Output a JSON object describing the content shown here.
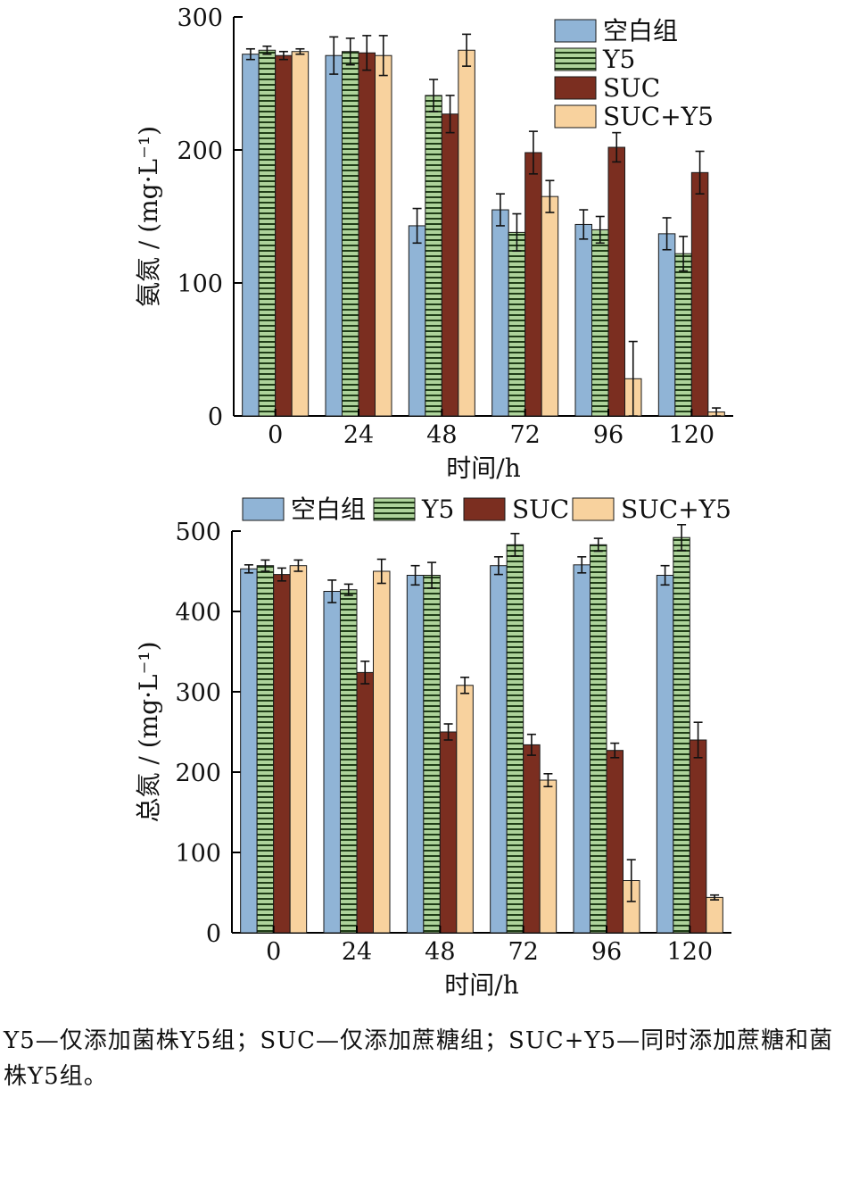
{
  "colors": {
    "blank": "#90b4d6",
    "y5": "#aed39b",
    "suc": "#7b2e20",
    "sucy5": "#f8d29e",
    "axis": "#000000"
  },
  "chart_data": [
    {
      "type": "bar",
      "categories": [
        "0",
        "24",
        "48",
        "72",
        "96",
        "120"
      ],
      "xlabel": "时间/h",
      "ylabel": "氨氮 / (mg·L⁻¹)",
      "ylim": [
        0,
        300
      ],
      "yticks": [
        "0",
        "100",
        "200",
        "300"
      ],
      "legend_position": "top-right",
      "series": [
        {
          "name": "空白组",
          "key": "blank",
          "values": [
            272,
            271,
            143,
            155,
            144,
            137
          ],
          "errors": [
            4,
            14,
            13,
            12,
            11,
            12
          ]
        },
        {
          "name": "Y5",
          "key": "y5",
          "values": [
            275,
            274,
            241,
            138,
            140,
            122
          ],
          "errors": [
            3,
            10,
            12,
            14,
            10,
            13
          ]
        },
        {
          "name": "SUC",
          "key": "suc",
          "values": [
            271,
            273,
            227,
            198,
            202,
            183
          ],
          "errors": [
            3,
            13,
            14,
            16,
            11,
            16
          ]
        },
        {
          "name": "SUC+Y5",
          "key": "sucy5",
          "values": [
            274,
            271,
            275,
            165,
            28,
            3
          ],
          "errors": [
            2,
            15,
            12,
            12,
            28,
            3
          ]
        }
      ]
    },
    {
      "type": "bar",
      "categories": [
        "0",
        "24",
        "48",
        "72",
        "96",
        "120"
      ],
      "xlabel": "时间/h",
      "ylabel": "总氮 / (mg·L⁻¹)",
      "ylim": [
        0,
        500
      ],
      "yticks": [
        "0",
        "100",
        "200",
        "300",
        "400",
        "500"
      ],
      "legend_position": "top",
      "series": [
        {
          "name": "空白组",
          "key": "blank",
          "values": [
            453,
            425,
            445,
            457,
            458,
            445
          ],
          "errors": [
            5,
            14,
            12,
            11,
            10,
            12
          ]
        },
        {
          "name": "Y5",
          "key": "y5",
          "values": [
            457,
            427,
            445,
            483,
            483,
            492
          ],
          "errors": [
            7,
            7,
            16,
            14,
            8,
            16
          ]
        },
        {
          "name": "SUC",
          "key": "suc",
          "values": [
            446,
            324,
            250,
            234,
            227,
            240
          ],
          "errors": [
            8,
            14,
            10,
            13,
            9,
            22
          ]
        },
        {
          "name": "SUC+Y5",
          "key": "sucy5",
          "values": [
            457,
            450,
            308,
            190,
            65,
            44
          ],
          "errors": [
            7,
            15,
            10,
            8,
            26,
            3
          ]
        }
      ]
    }
  ],
  "caption": {
    "text": "Y5—仅添加菌株Y5组；SUC—仅添加蔗糖组；SUC+Y5—同时添加蔗糖和菌株Y5组。"
  }
}
